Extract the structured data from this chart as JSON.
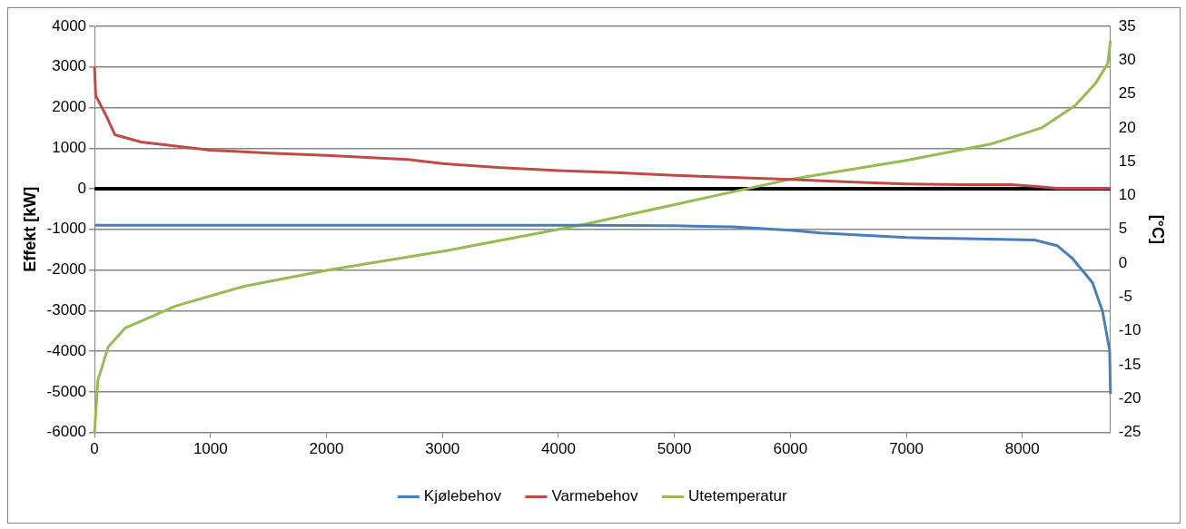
{
  "chart_data": {
    "type": "line",
    "ylabel": "Effekt [kW]",
    "y2label": "[°C]",
    "xlim": [
      0,
      8760
    ],
    "xticks": [
      0,
      1000,
      2000,
      3000,
      4000,
      5000,
      6000,
      7000,
      8000
    ],
    "ylim": [
      -6000,
      4000
    ],
    "yticks": [
      -6000,
      -5000,
      -4000,
      -3000,
      -2000,
      -1000,
      0,
      1000,
      2000,
      3000,
      4000
    ],
    "y2lim": [
      -25,
      35
    ],
    "y2ticks": [
      -25,
      -20,
      -15,
      -10,
      -5,
      0,
      5,
      10,
      15,
      20,
      25,
      30,
      35
    ],
    "grid": "y",
    "legend": "bottom",
    "marker": "none",
    "line_style": "solid",
    "ref_lines": [
      {
        "axis": "y",
        "value": 0,
        "color": "#000000"
      }
    ],
    "series": [
      {
        "name": "Kjølebehov",
        "color": "#4a7ebb",
        "x": [
          0,
          1000,
          2000,
          3000,
          4200,
          5000,
          5500,
          6000,
          6260,
          7000,
          7500,
          8105,
          8300,
          8430,
          8605,
          8692,
          8753,
          8760
        ],
        "values": [
          -900,
          -900,
          -900,
          -900,
          -900,
          -910,
          -940,
          -1020,
          -1090,
          -1200,
          -1230,
          -1260,
          -1400,
          -1710,
          -2310,
          -3020,
          -3980,
          -5050
        ]
      },
      {
        "name": "Varmebehov",
        "color": "#be4b48",
        "x": [
          0,
          10,
          100,
          176,
          400,
          700,
          1000,
          1500,
          2000,
          2500,
          2700,
          3000,
          3500,
          4000,
          4500,
          5000,
          5500,
          6000,
          6500,
          7000,
          7500,
          7900,
          8100,
          8300,
          8760
        ],
        "values": [
          3000,
          2300,
          1800,
          1330,
          1150,
          1050,
          950,
          880,
          820,
          750,
          720,
          620,
          520,
          450,
          400,
          330,
          280,
          230,
          170,
          120,
          100,
          100,
          60,
          10,
          10
        ]
      },
      {
        "name": "Utetemperatur",
        "color": "#98b954",
        "axis": "y2",
        "x": [
          0,
          29,
          117,
          263,
          702,
          1290,
          2020,
          3047,
          4215,
          5093,
          5971,
          7000,
          7727,
          8166,
          8456,
          8632,
          8737,
          8760
        ],
        "values": [
          -25,
          -17.3,
          -12.4,
          -9.6,
          -6.3,
          -3.4,
          -1,
          1.9,
          5.7,
          9,
          12.3,
          15.2,
          17.6,
          20,
          23.3,
          26.6,
          29.5,
          32.9
        ]
      }
    ]
  }
}
